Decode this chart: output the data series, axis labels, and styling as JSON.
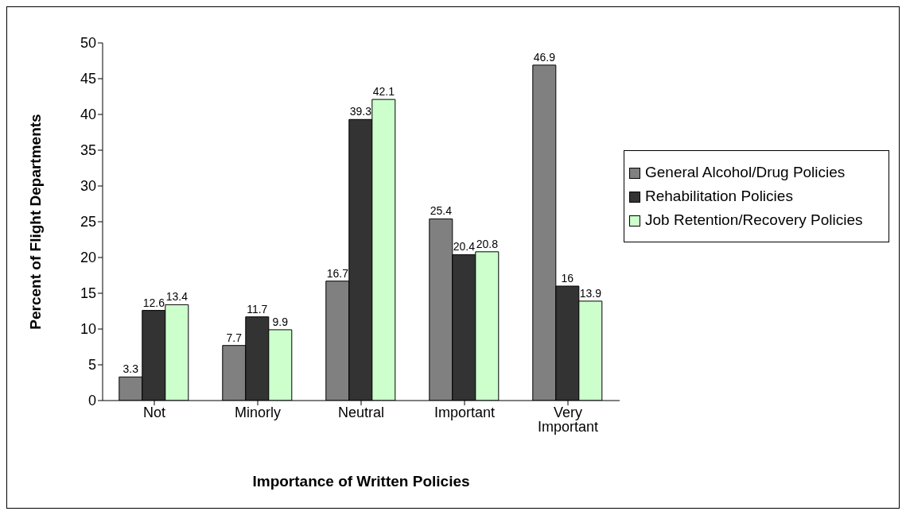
{
  "chart_data": {
    "type": "bar",
    "xlabel": "Importance of Written Policies",
    "ylabel": "Percent of Flight Departments",
    "categories": [
      "Not",
      "Minorly",
      "Neutral",
      "Important",
      "Very Important"
    ],
    "series": [
      {
        "name": "General Alcohol/Drug Policies",
        "color": "#808080",
        "values": [
          3.3,
          7.7,
          16.7,
          25.4,
          46.9
        ]
      },
      {
        "name": "Rehabilitation Policies",
        "color": "#333333",
        "values": [
          12.6,
          11.7,
          39.3,
          20.4,
          16
        ]
      },
      {
        "name": "Job Retention/Recovery Policies",
        "color": "#ccffcc",
        "values": [
          13.4,
          9.9,
          42.1,
          20.8,
          13.9
        ]
      }
    ],
    "ylim": [
      0,
      50
    ],
    "yticks": [
      0,
      5,
      10,
      15,
      20,
      25,
      30,
      35,
      40,
      45,
      50
    ],
    "data_labels": true,
    "legend": "right",
    "grid": false
  }
}
